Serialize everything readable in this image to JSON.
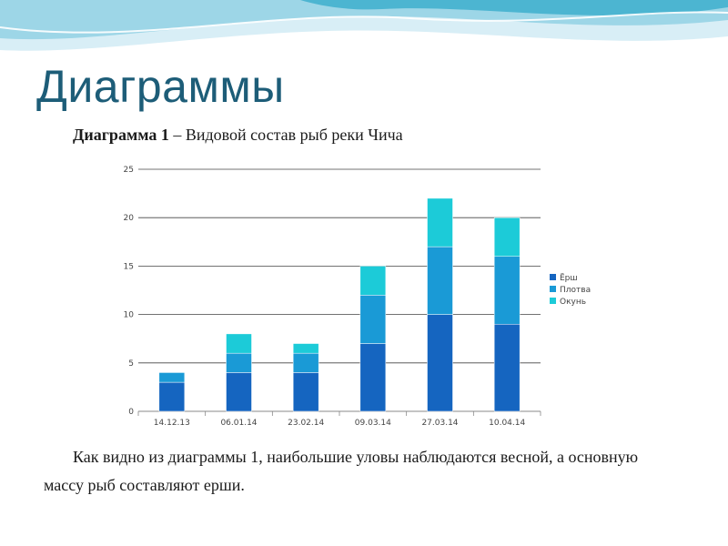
{
  "slide": {
    "title": "Диаграммы",
    "caption_bold": "Диаграмма 1",
    "caption_rest": " – Видовой состав рыб реки Чича",
    "body_text": "Как видно из диаграммы 1, наибольшие уловы наблюдаются весной, а основную массу рыб составляют ерши.",
    "colors": {
      "title": "#1d5d78",
      "wave_light": "#d8eef6",
      "wave_mid": "#8fd0e4",
      "wave_dark": "#2aa6c8"
    }
  },
  "chart_data": {
    "type": "bar",
    "stacked": true,
    "categories": [
      "14.12.13",
      "06.01.14",
      "23.02.14",
      "09.03.14",
      "27.03.14",
      "10.04.14"
    ],
    "series": [
      {
        "name": "Ёрш",
        "values": [
          3,
          4,
          4,
          7,
          10,
          9
        ],
        "color": "#1565c0"
      },
      {
        "name": "Плотва",
        "values": [
          1,
          2,
          2,
          5,
          7,
          7
        ],
        "color": "#1a9ad6"
      },
      {
        "name": "Окунь",
        "values": [
          0,
          2,
          1,
          3,
          5,
          4
        ],
        "color": "#1ccbd8"
      }
    ],
    "yticks": [
      0,
      5,
      10,
      15,
      20,
      25
    ],
    "ylim": [
      0,
      25
    ],
    "grid": true,
    "legend": "right"
  }
}
